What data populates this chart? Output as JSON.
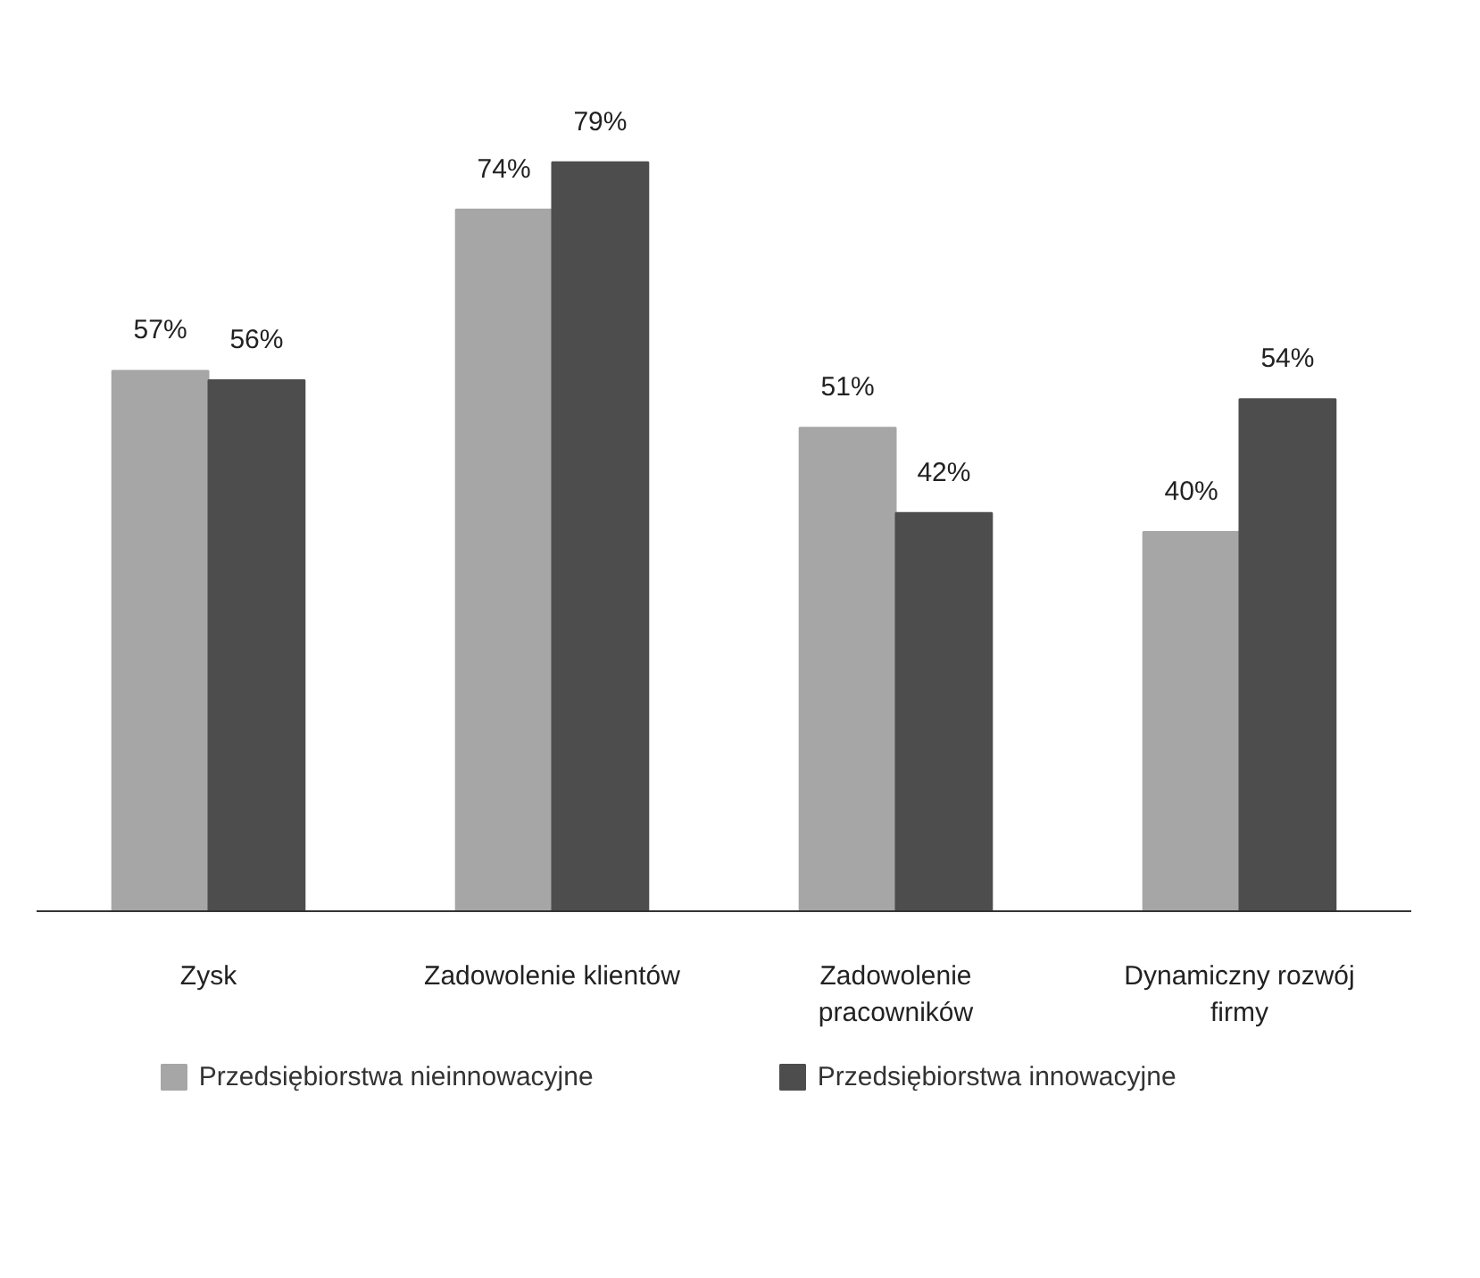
{
  "chart_data": {
    "type": "bar",
    "categories": [
      "Zysk",
      "Zadowolenie klientów",
      "Zadowolenie pracowników",
      "Dynamiczny rozwój firmy"
    ],
    "series": [
      {
        "name": "Przedsiębiorstwa nieinnowacyjne",
        "color": "#a6a6a6",
        "values": [
          57,
          74,
          51,
          40
        ],
        "value_labels": [
          "57%",
          "74%",
          "51%",
          "40%"
        ]
      },
      {
        "name": "Przedsiębiorstwa innowacyjne",
        "color": "#4d4d4d",
        "values": [
          56,
          79,
          42,
          54
        ],
        "value_labels": [
          "56%",
          "79%",
          "42%",
          "54%"
        ]
      }
    ],
    "legend": "bottom",
    "grid": false
  }
}
